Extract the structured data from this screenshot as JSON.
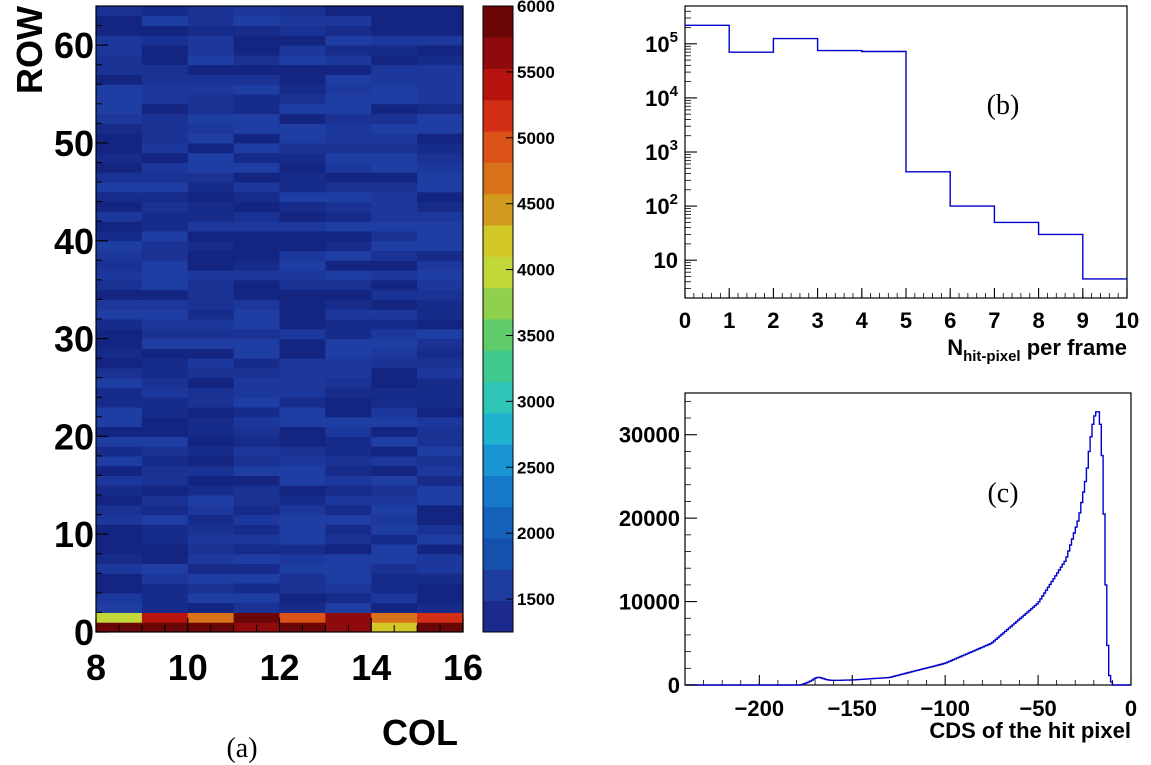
{
  "chart_data": [
    {
      "panel": "a",
      "type": "heatmap",
      "caption": "(a)",
      "xlabel": "COL",
      "ylabel": "ROW",
      "xlim": [
        8,
        16
      ],
      "ylim": [
        0,
        64
      ],
      "xticks": [
        "8",
        "10",
        "12",
        "14",
        "16"
      ],
      "yticks": [
        "0",
        "10",
        "20",
        "30",
        "40",
        "50",
        "60"
      ],
      "colorbar_range": [
        1250,
        6000
      ],
      "colorbar_ticks": [
        "1500",
        "2000",
        "2500",
        "3000",
        "3500",
        "4000",
        "4500",
        "5000",
        "5500",
        "6000"
      ],
      "background_level": 1500,
      "bottom_rows": {
        "row_0": [
          5900,
          5900,
          5900,
          5600,
          5800,
          5750,
          4100,
          5850
        ],
        "row_1": [
          4000,
          5300,
          4800,
          5900,
          4900,
          5700,
          4700,
          5200
        ]
      }
    },
    {
      "panel": "b",
      "type": "histogram",
      "caption": "(b)",
      "xlabel": "N",
      "xlabel_sub": "hit-pixel",
      "xlabel_rest": " per frame",
      "xlim": [
        0,
        10
      ],
      "ylim": [
        2,
        500000
      ],
      "yscale": "log",
      "xticks": [
        "0",
        "1",
        "2",
        "3",
        "4",
        "5",
        "6",
        "7",
        "8",
        "9",
        "10"
      ],
      "yticks": [
        {
          "base": "10",
          "exp": ""
        },
        {
          "base": "10",
          "exp": "2"
        },
        {
          "base": "10",
          "exp": "3"
        },
        {
          "base": "10",
          "exp": "4"
        },
        {
          "base": "10",
          "exp": "5"
        }
      ],
      "bins": [
        0,
        1,
        2,
        3,
        4,
        5,
        6,
        7,
        8,
        9,
        10
      ],
      "values": [
        220000,
        70000,
        125000,
        75000,
        72000,
        430,
        100,
        50,
        30,
        4.5
      ]
    },
    {
      "panel": "c",
      "type": "histogram",
      "caption": "(c)",
      "xlabel": "CDS of the hit pixel",
      "xlim": [
        -240,
        0
      ],
      "ylim": [
        0,
        35000
      ],
      "xticks": [
        "−200",
        "−150",
        "−100",
        "−50",
        "0"
      ],
      "yticks": [
        "0",
        "10000",
        "20000",
        "30000"
      ],
      "profile": {
        "x": [
          -240,
          -178,
          -175,
          -172,
          -170,
          -168,
          -166,
          -163,
          -160,
          -150,
          -130,
          -100,
          -75,
          -50,
          -35,
          -28,
          -24,
          -22,
          -20,
          -18,
          -17,
          -16,
          -15,
          -14,
          -13,
          -12,
          -10,
          0
        ],
        "y": [
          0,
          0,
          200,
          500,
          800,
          950,
          800,
          600,
          550,
          600,
          900,
          2600,
          5000,
          9800,
          15000,
          20000,
          25000,
          29000,
          32000,
          33000,
          32500,
          30000,
          25000,
          16000,
          8000,
          1500,
          0,
          0
        ]
      }
    }
  ]
}
